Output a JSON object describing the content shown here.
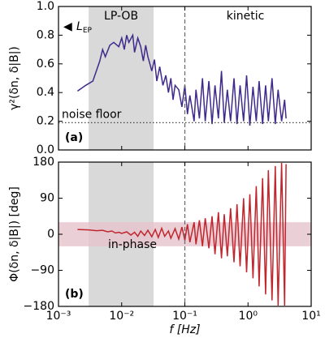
{
  "chart_data": [
    {
      "type": "line",
      "ylabel": "γ²(δn, δ|B|)",
      "panel_label": "(a)",
      "annotations": {
        "region": "LP-OB",
        "kinetic": "kinetic",
        "noise": "noise floor",
        "marker": "◀",
        "lep": "L",
        "lep_sub": "EP"
      },
      "log_x": true,
      "xlim": [
        0.001,
        10
      ],
      "xticks": [
        0.001,
        0.01,
        0.1,
        1,
        10
      ],
      "ylim": [
        0,
        1
      ],
      "yticks": [
        {
          "value": 0,
          "label": "0.0"
        },
        0.2,
        0.4,
        0.6,
        0.8,
        {
          "value": 1,
          "label": "1.0"
        }
      ],
      "shade_x": [
        0.003,
        0.032
      ],
      "vline": 0.1,
      "hline": 0.19,
      "color": "#3f2a8c",
      "x": [
        0.002,
        0.0027,
        0.0035,
        0.0045,
        0.005,
        0.0055,
        0.0065,
        0.0075,
        0.009,
        0.01,
        0.011,
        0.012,
        0.013,
        0.015,
        0.016,
        0.018,
        0.02,
        0.022,
        0.024,
        0.026,
        0.028,
        0.03,
        0.033,
        0.036,
        0.04,
        0.045,
        0.05,
        0.055,
        0.06,
        0.065,
        0.07,
        0.08,
        0.09,
        0.1,
        0.11,
        0.12,
        0.14,
        0.15,
        0.17,
        0.19,
        0.21,
        0.24,
        0.27,
        0.3,
        0.34,
        0.38,
        0.42,
        0.47,
        0.53,
        0.6,
        0.67,
        0.75,
        0.85,
        0.95,
        1.07,
        1.2,
        1.35,
        1.5,
        1.7,
        1.9,
        2.1,
        2.4,
        2.7,
        3.0,
        3.4,
        3.8,
        4.0
      ],
      "values": [
        0.41,
        0.45,
        0.48,
        0.62,
        0.7,
        0.65,
        0.73,
        0.75,
        0.72,
        0.78,
        0.7,
        0.8,
        0.75,
        0.8,
        0.68,
        0.78,
        0.72,
        0.62,
        0.73,
        0.65,
        0.6,
        0.55,
        0.63,
        0.48,
        0.58,
        0.45,
        0.52,
        0.4,
        0.5,
        0.35,
        0.45,
        0.42,
        0.3,
        0.45,
        0.25,
        0.38,
        0.2,
        0.42,
        0.22,
        0.5,
        0.2,
        0.48,
        0.18,
        0.45,
        0.22,
        0.55,
        0.19,
        0.42,
        0.2,
        0.5,
        0.18,
        0.45,
        0.2,
        0.52,
        0.17,
        0.44,
        0.2,
        0.48,
        0.18,
        0.45,
        0.2,
        0.5,
        0.18,
        0.42,
        0.2,
        0.35,
        0.22
      ]
    },
    {
      "type": "line",
      "ylabel": "Φ(δn, δ|B|)  [deg]",
      "xlabel": "f [Hz]",
      "panel_label": "(b)",
      "annotations": {
        "band": "in-phase"
      },
      "log_x": true,
      "xlim": [
        0.001,
        10
      ],
      "xticks": [
        {
          "value": 0.001,
          "label": "10⁻³"
        },
        {
          "value": 0.01,
          "label": "10⁻²"
        },
        {
          "value": 0.1,
          "label": "10⁻¹"
        },
        {
          "value": 1,
          "label": "10⁰"
        },
        {
          "value": 10,
          "label": "10¹"
        }
      ],
      "ylim": [
        -180,
        180
      ],
      "yticks": [
        {
          "value": -180,
          "label": "−180"
        },
        {
          "value": -90,
          "label": "−90"
        },
        0,
        90,
        180
      ],
      "shade_x": [
        0.003,
        0.032
      ],
      "shade_y": [
        -30,
        30
      ],
      "vline": 0.1,
      "color": "#c0262d",
      "x": [
        0.002,
        0.003,
        0.004,
        0.005,
        0.006,
        0.007,
        0.008,
        0.009,
        0.01,
        0.012,
        0.014,
        0.016,
        0.018,
        0.02,
        0.023,
        0.026,
        0.03,
        0.034,
        0.038,
        0.043,
        0.048,
        0.055,
        0.06,
        0.07,
        0.08,
        0.09,
        0.1,
        0.11,
        0.12,
        0.14,
        0.15,
        0.17,
        0.19,
        0.21,
        0.24,
        0.27,
        0.3,
        0.34,
        0.38,
        0.42,
        0.47,
        0.53,
        0.6,
        0.67,
        0.75,
        0.85,
        0.95,
        1.07,
        1.2,
        1.35,
        1.5,
        1.7,
        1.9,
        2.1,
        2.4,
        2.7,
        3.0,
        3.4,
        3.8,
        4.0
      ],
      "values": [
        12,
        11,
        9,
        10,
        6,
        8,
        3,
        5,
        2,
        6,
        -2,
        5,
        -5,
        8,
        -3,
        10,
        -6,
        12,
        -8,
        15,
        -5,
        8,
        -10,
        14,
        -12,
        18,
        -15,
        25,
        -20,
        30,
        -25,
        35,
        -30,
        40,
        -35,
        45,
        -50,
        55,
        -60,
        50,
        -55,
        65,
        -70,
        75,
        -80,
        90,
        -95,
        100,
        -110,
        120,
        -130,
        140,
        -150,
        160,
        -165,
        170,
        -178,
        178,
        -178,
        175
      ]
    }
  ]
}
